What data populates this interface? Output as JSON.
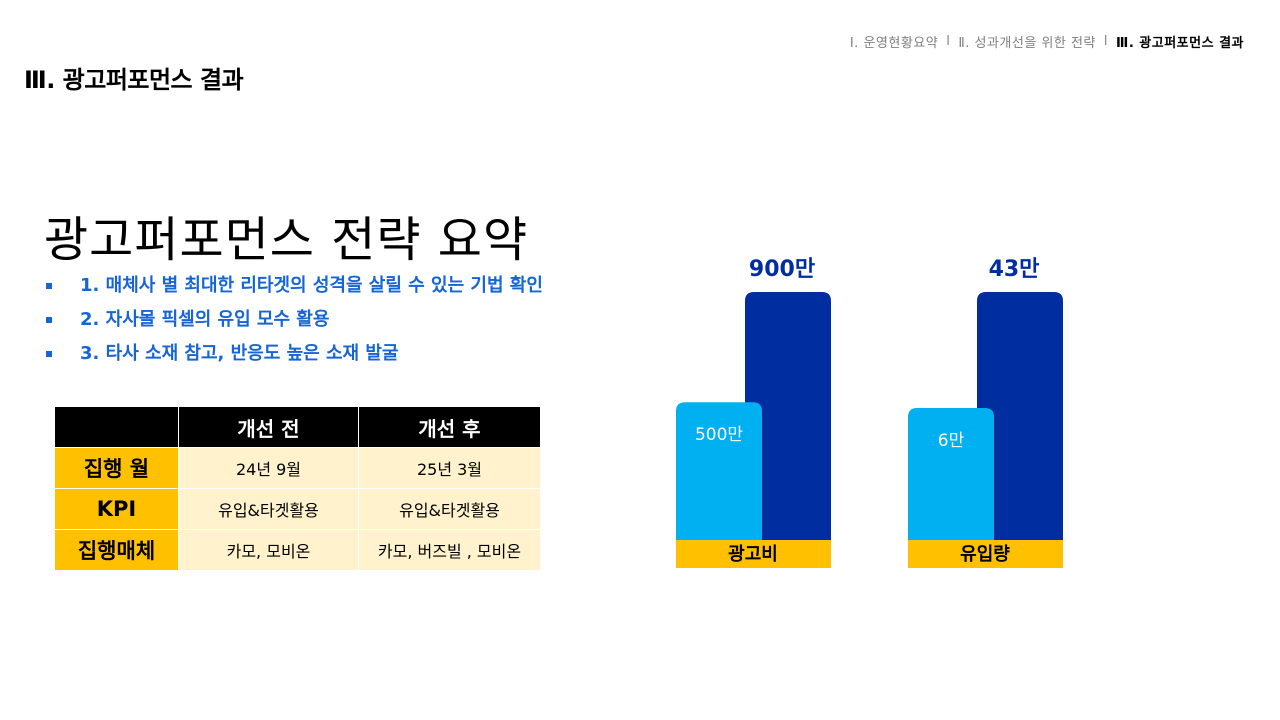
{
  "breadcrumb": {
    "items": [
      {
        "label": "Ⅰ. 운영현황요약",
        "active": false
      },
      {
        "label": "Ⅱ. 성과개선을 위한 전략",
        "active": false
      },
      {
        "label": "Ⅲ. 광고퍼포먼스 결과",
        "active": true
      }
    ],
    "separator": "l"
  },
  "page_title": "Ⅲ. 광고퍼포먼스 결과",
  "headline": "광고퍼포먼스 전략 요약",
  "bullets": [
    "1. 매체사 별 최대한 리타겟의 성격을 살릴 수 있는 기법 확인",
    "2. 자사몰 픽셀의 유입 모수 활용",
    "3. 타사 소재 참고, 반응도 높은 소재 발굴"
  ],
  "table": {
    "corner": "",
    "columns": [
      "개선 전",
      "개선 후"
    ],
    "rows": [
      {
        "label": "집행 월",
        "values": [
          "24년 9월",
          "25년 3월"
        ]
      },
      {
        "label": "KPI",
        "values": [
          "유입&타겟활용",
          "유입&타겟활용"
        ]
      },
      {
        "label": "집행매체",
        "values": [
          "카모, 모비온",
          "카모, 버즈빌 , 모비온"
        ]
      }
    ]
  },
  "chart_data": {
    "type": "bar",
    "categories": [
      "광고비",
      "유입량"
    ],
    "groups": [
      {
        "category": "광고비",
        "before": {
          "value": 500,
          "label": "500만"
        },
        "after": {
          "value": 900,
          "label": "900만"
        }
      },
      {
        "category": "유입량",
        "before": {
          "value": 6,
          "label": "6만"
        },
        "after": {
          "value": 43,
          "label": "43만"
        }
      }
    ],
    "colors": {
      "before": "#00b0f0",
      "after": "#002da0",
      "category_band": "#ffc000",
      "after_label": "#002da0",
      "before_label": "#ffffff"
    }
  }
}
